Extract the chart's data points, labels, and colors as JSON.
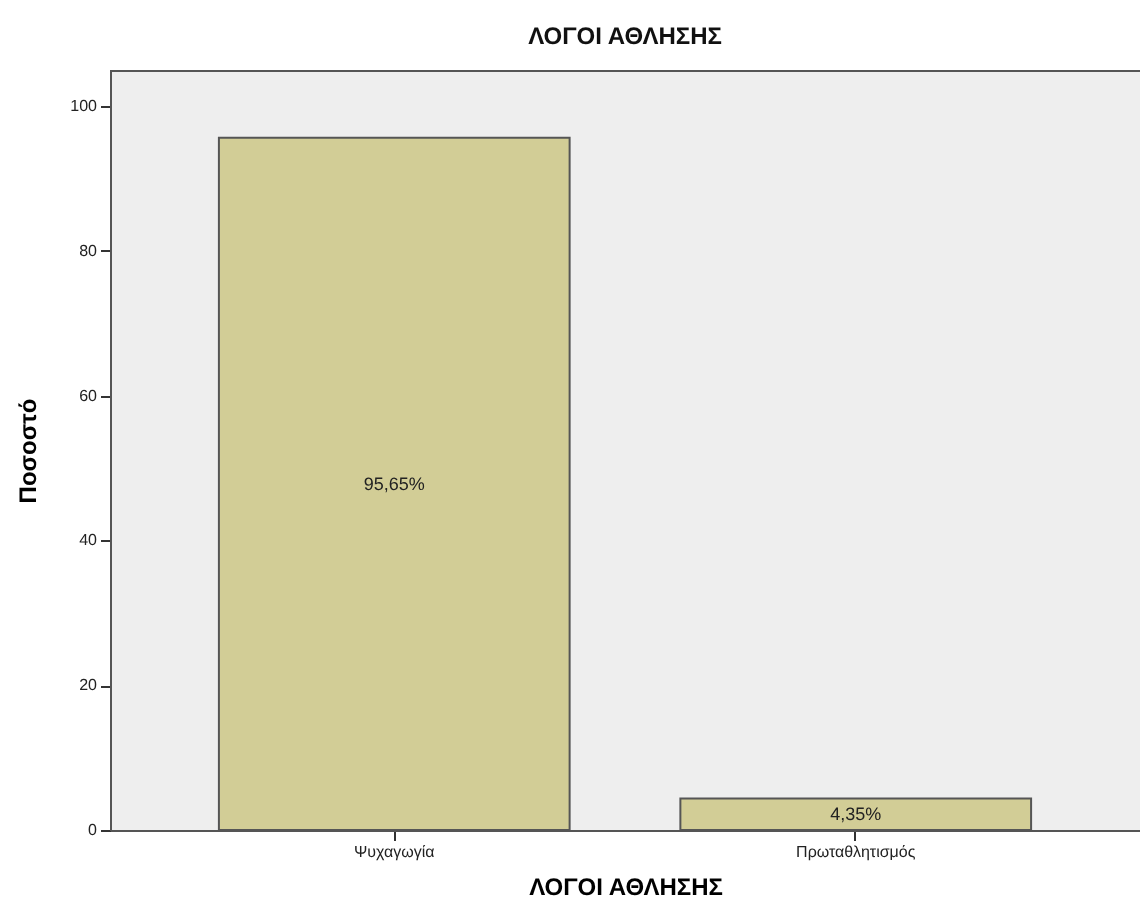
{
  "chart_data": {
    "type": "bar",
    "title": "ΛΟΓΟΙ ΑΘΛΗΣΗΣ",
    "xlabel": "ΛΟΓΟΙ ΑΘΛΗΣΗΣ",
    "ylabel": "Ποσοστό",
    "categories": [
      "Ψυχαγωγία",
      "Πρωταθλητισμός"
    ],
    "values": [
      95.65,
      4.35
    ],
    "value_labels": [
      "95,65%",
      "4,35%"
    ],
    "color": "#d2cd96",
    "ylim": [
      0,
      105
    ],
    "yticks": [
      0,
      20,
      40,
      60,
      80,
      100
    ],
    "grid": false
  }
}
